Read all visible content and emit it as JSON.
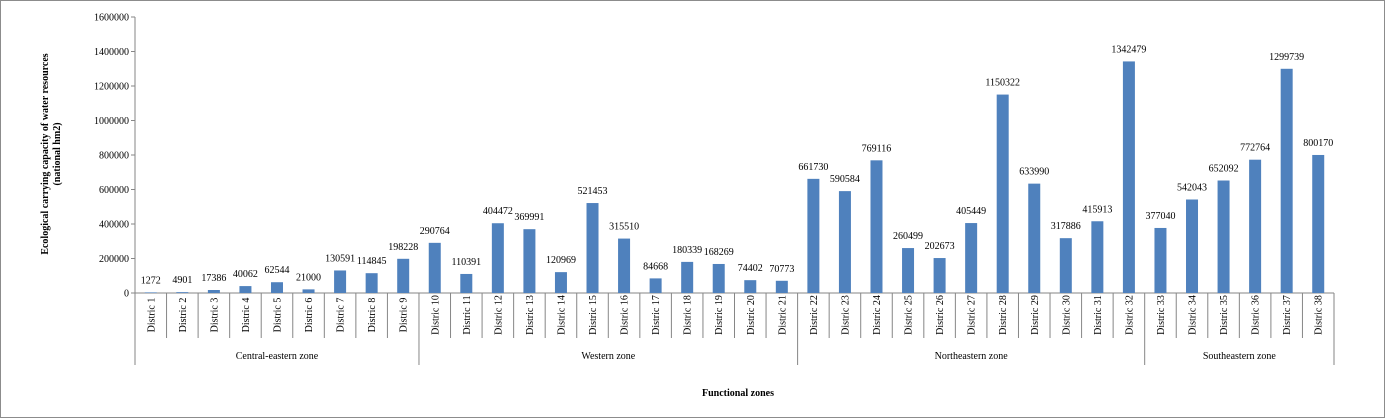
{
  "chart_data": {
    "type": "bar",
    "ylabel_line1": "Ecological carrying capacity of water resources",
    "ylabel_line2": "(national hm2)",
    "xlabel": "Functional zones",
    "ylim": [
      0,
      1600000
    ],
    "yticks": [
      "0",
      "200000",
      "400000",
      "600000",
      "800000",
      "1000000",
      "1200000",
      "1400000",
      "1600000"
    ],
    "bar_color": "#4f81bd",
    "categories": [
      "Distric 1",
      "Distric 2",
      "Distric 3",
      "Distric 4",
      "Distric 5",
      "Distric 6",
      "Distric 7",
      "Distric 8",
      "Distric 9",
      "Distric 10",
      "Distric 11",
      "Distric 12",
      "Distric 13",
      "Distric 14",
      "Distric 15",
      "Distric 16",
      "Distric 17",
      "Distric 18",
      "Distric 19",
      "Distric 20",
      "Distric 21",
      "Distric 22",
      "Distric 23",
      "Distric 24",
      "Distric 25",
      "Distric 26",
      "Distric 27",
      "Distric 28",
      "Distric 29",
      "Distric 30",
      "Distric 31",
      "Distric 32",
      "Distric 33",
      "Distric 34",
      "Distric 35",
      "Distric 36",
      "Distric 37",
      "Distric 38"
    ],
    "values": [
      1272,
      4901,
      17386,
      40062,
      62544,
      21000,
      130591,
      114845,
      198228,
      290764,
      110391,
      404472,
      369991,
      120969,
      521453,
      315510,
      84668,
      180339,
      168269,
      74402,
      70773,
      661730,
      590584,
      769116,
      260499,
      202673,
      405449,
      1150322,
      633990,
      317886,
      415913,
      1342479,
      377040,
      542043,
      652092,
      772764,
      1299739,
      800170
    ],
    "value_labels": [
      "1272",
      "4901",
      "17386",
      "40062",
      "62544",
      "21000",
      "130591",
      "114845",
      "198228",
      "290764",
      "110391",
      "404472",
      "369991",
      "120969",
      "521453",
      "315510",
      "84668",
      "180339",
      "168269",
      "74402",
      "70773",
      "661730",
      "590584",
      "769116",
      "260499",
      "202673",
      "405449",
      "1150322",
      "633990",
      "317886",
      "415913",
      "1342479",
      "377040",
      "542043",
      "652092",
      "772764",
      "1299739",
      "800170"
    ],
    "groups": [
      {
        "label": "Central-eastern zone",
        "start": 0,
        "end": 8
      },
      {
        "label": "Western zone",
        "start": 9,
        "end": 20
      },
      {
        "label": "Northeastern zone",
        "start": 21,
        "end": 31
      },
      {
        "label": "Southeastern zone",
        "start": 32,
        "end": 37
      }
    ]
  }
}
